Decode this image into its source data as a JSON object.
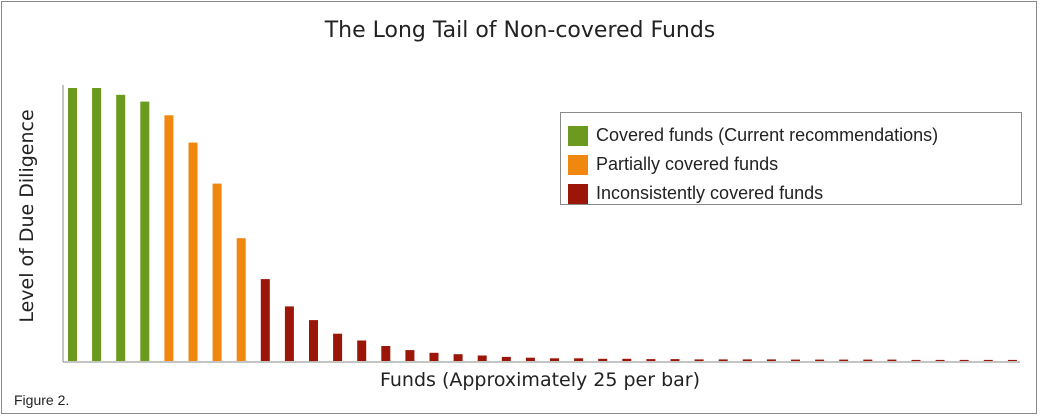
{
  "caption": "Figure 2.",
  "chart_data": {
    "type": "bar",
    "title": "The Long Tail of Non-covered Funds",
    "xlabel": "Funds (Approximately 25 per bar)",
    "ylabel": "Level of Due Diligence",
    "ylim": [
      0,
      100
    ],
    "grid": false,
    "legend_position": "top-right",
    "series": [
      {
        "name": "Covered funds (Current recommendations)",
        "color": "#6b9a1f"
      },
      {
        "name": "Partially covered funds",
        "color": "#f0870f"
      },
      {
        "name": "Inconsistently covered funds",
        "color": "#9b1508"
      }
    ],
    "bars": [
      {
        "value": 100,
        "series": 0
      },
      {
        "value": 100,
        "series": 0
      },
      {
        "value": 97.5,
        "series": 0
      },
      {
        "value": 95,
        "series": 0
      },
      {
        "value": 90,
        "series": 1
      },
      {
        "value": 80,
        "series": 1
      },
      {
        "value": 65,
        "series": 1
      },
      {
        "value": 45,
        "series": 1
      },
      {
        "value": 30,
        "series": 2
      },
      {
        "value": 20,
        "series": 2
      },
      {
        "value": 15,
        "series": 2
      },
      {
        "value": 10,
        "series": 2
      },
      {
        "value": 7.5,
        "series": 2
      },
      {
        "value": 5.5,
        "series": 2
      },
      {
        "value": 4,
        "series": 2
      },
      {
        "value": 3,
        "series": 2
      },
      {
        "value": 2.5,
        "series": 2
      },
      {
        "value": 2,
        "series": 2
      },
      {
        "value": 1.5,
        "series": 2
      },
      {
        "value": 1.2,
        "series": 2
      },
      {
        "value": 1,
        "series": 2
      },
      {
        "value": 1,
        "series": 2
      },
      {
        "value": 0.8,
        "series": 2
      },
      {
        "value": 0.8,
        "series": 2
      },
      {
        "value": 0.7,
        "series": 2
      },
      {
        "value": 0.7,
        "series": 2
      },
      {
        "value": 0.6,
        "series": 2
      },
      {
        "value": 0.6,
        "series": 2
      },
      {
        "value": 0.6,
        "series": 2
      },
      {
        "value": 0.6,
        "series": 2
      },
      {
        "value": 0.5,
        "series": 2
      },
      {
        "value": 0.5,
        "series": 2
      },
      {
        "value": 0.5,
        "series": 2
      },
      {
        "value": 0.5,
        "series": 2
      },
      {
        "value": 0.5,
        "series": 2
      },
      {
        "value": 0.4,
        "series": 2
      },
      {
        "value": 0.4,
        "series": 2
      },
      {
        "value": 0.4,
        "series": 2
      },
      {
        "value": 0.4,
        "series": 2
      },
      {
        "value": 0.4,
        "series": 2
      }
    ]
  }
}
